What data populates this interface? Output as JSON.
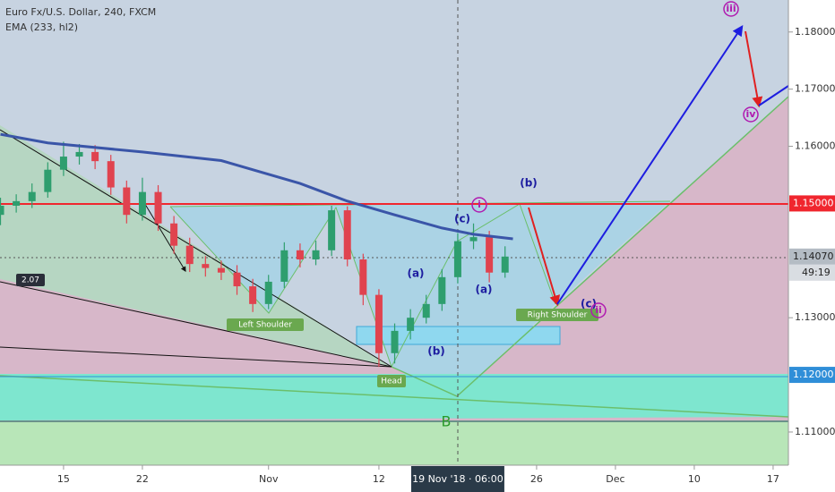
{
  "chart_data": {
    "type": "candlestick",
    "title": "Euro Fx/U.S. Dollar, 240, FXCM",
    "indicator": "EMA (233, hl2)",
    "x": [
      -4,
      -3,
      -2,
      -1,
      0,
      1,
      2,
      3,
      4,
      5,
      6,
      7,
      8,
      9,
      10,
      11,
      12,
      13,
      14,
      15,
      16,
      17,
      18,
      19,
      20,
      21,
      22,
      23,
      24,
      25,
      26,
      27,
      28
    ],
    "open": [
      1.148,
      1.1496,
      1.1504,
      1.152,
      1.1559,
      1.1582,
      1.159,
      1.1574,
      1.1528,
      1.148,
      1.152,
      1.1465,
      1.1426,
      1.1394,
      1.1387,
      1.1379,
      1.1355,
      1.1324,
      1.1363,
      1.1418,
      1.1402,
      1.1418,
      1.1488,
      1.1402,
      1.134,
      1.1238,
      1.1277,
      1.13,
      1.1324,
      1.1371,
      1.1434,
      1.1441,
      1.1379
    ],
    "high": [
      1.151,
      1.1516,
      1.1535,
      1.1572,
      1.1608,
      1.1604,
      1.1602,
      1.1585,
      1.154,
      1.1545,
      1.1532,
      1.1478,
      1.144,
      1.1408,
      1.14,
      1.1392,
      1.1368,
      1.1375,
      1.1432,
      1.143,
      1.1435,
      1.1496,
      1.1495,
      1.1412,
      1.135,
      1.129,
      1.1315,
      1.134,
      1.1385,
      1.1448,
      1.1465,
      1.1452,
      1.1425
    ],
    "low": [
      1.1462,
      1.1484,
      1.1492,
      1.151,
      1.1548,
      1.1568,
      1.156,
      1.1515,
      1.1465,
      1.147,
      1.1452,
      1.1412,
      1.138,
      1.1372,
      1.1366,
      1.134,
      1.131,
      1.1315,
      1.1352,
      1.1388,
      1.1392,
      1.1408,
      1.139,
      1.1322,
      1.1214,
      1.122,
      1.1262,
      1.129,
      1.1312,
      1.136,
      1.142,
      1.1362,
      1.137
    ],
    "close": [
      1.1496,
      1.1504,
      1.152,
      1.1559,
      1.1582,
      1.159,
      1.1574,
      1.1528,
      1.148,
      1.152,
      1.1465,
      1.1426,
      1.1394,
      1.1387,
      1.1379,
      1.1355,
      1.1324,
      1.1363,
      1.1418,
      1.1402,
      1.1418,
      1.1488,
      1.1402,
      1.134,
      1.1238,
      1.1277,
      1.13,
      1.1324,
      1.1371,
      1.1434,
      1.1441,
      1.1379,
      1.1407
    ],
    "up_color": "#2e9e6e",
    "down_color": "#e0434f",
    "ema": {
      "x": [
        -4,
        -1,
        5,
        10,
        15,
        18,
        21,
        24,
        26,
        28.5
      ],
      "values": [
        1.1621,
        1.1606,
        1.159,
        1.1575,
        1.1535,
        1.1504,
        1.148,
        1.1457,
        1.1446,
        1.1438
      ],
      "color": "#3a55a8"
    },
    "xlim": [
      -4.03,
      45.97
    ],
    "ylim": [
      1.1042,
      1.1856
    ],
    "xticks": [
      {
        "value": 0,
        "label": "15"
      },
      {
        "value": 5,
        "label": "22"
      },
      {
        "value": 13,
        "label": "Nov"
      },
      {
        "value": 20,
        "label": "12"
      },
      {
        "value": 30,
        "label": "26"
      },
      {
        "value": 35,
        "label": "Dec"
      },
      {
        "value": 40,
        "label": "10"
      },
      {
        "value": 45,
        "label": "17"
      }
    ],
    "yticks": [
      {
        "value": 1.18,
        "label": "1.18000"
      },
      {
        "value": 1.17,
        "label": "1.17000"
      },
      {
        "value": 1.16,
        "label": "1.16000"
      },
      {
        "value": 1.13,
        "label": "1.13000"
      },
      {
        "value": 1.11,
        "label": "1.11000"
      }
    ],
    "price_markers": [
      {
        "value": 1.15,
        "label": "1.15000",
        "color": "#f0262e"
      },
      {
        "value": 1.1407,
        "label": "1.14070",
        "color": "#b4bcc4"
      },
      {
        "value": 1.12,
        "label": "1.12000",
        "color": "#2f8ed8"
      }
    ],
    "countdown": "49:19",
    "crosshair": {
      "value": 25,
      "label": "19 Nov '18 · 06:00"
    },
    "annotations": [
      "2.07",
      "Left Shoulder",
      "Head",
      "Right Shoulder",
      "(a)",
      "(b)",
      "(c)",
      "(a)",
      "(b)",
      "(c)",
      "i",
      "ii",
      "iii",
      "iv",
      "B"
    ]
  }
}
